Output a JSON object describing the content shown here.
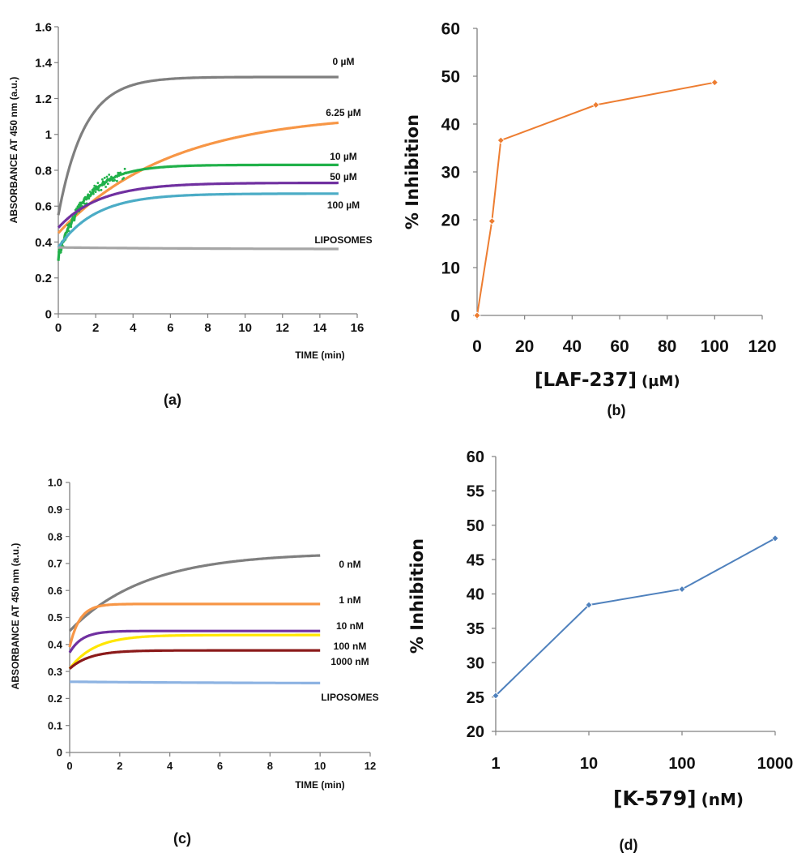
{
  "chart_data": [
    {
      "panel_label": "(a)",
      "type": "line",
      "title": "",
      "xlabel": "TIME (min)",
      "ylabel": "ABSORBANCE AT 450 nm (a.u.)",
      "xlim": [
        0,
        16
      ],
      "ylim": [
        0,
        1.6
      ],
      "xticks": [
        0,
        2,
        4,
        6,
        8,
        10,
        12,
        14,
        16
      ],
      "yticks": [
        0,
        0.2,
        0.4,
        0.6,
        0.8,
        1.0,
        1.2,
        1.4,
        1.6
      ],
      "ytick_labels": [
        "0",
        "0.2",
        "0.4",
        "0.6",
        "0.8",
        "1",
        "1.2",
        "1.4",
        "1.6"
      ],
      "series": [
        {
          "name": "0 µM",
          "color": "#7f7f7f",
          "model": {
            "y0": 0.55,
            "yinf": 1.32,
            "tau": 1.4,
            "xmax": 15
          }
        },
        {
          "name": "6.25 µM",
          "color": "#f79646",
          "model": {
            "y0": 0.45,
            "yinf": 1.12,
            "tau": 6.0,
            "xmax": 15
          }
        },
        {
          "name": "10 µM",
          "color": "#21b14a",
          "model": {
            "y0": 0.32,
            "yinf": 0.83,
            "tau": 1.5,
            "xmax": 15,
            "noisy": true
          }
        },
        {
          "name": "50 µM",
          "color": "#7030a0",
          "model": {
            "y0": 0.48,
            "yinf": 0.73,
            "tau": 2.2,
            "xmax": 15
          }
        },
        {
          "name": "100 µM",
          "color": "#4bacc6",
          "model": {
            "y0": 0.37,
            "yinf": 0.67,
            "tau": 2.0,
            "xmax": 15
          }
        },
        {
          "name": "LIPOSOMES",
          "color": "#a6a6a6",
          "model": {
            "y0": 0.37,
            "yinf": 0.36,
            "tau": 8.0,
            "xmax": 15
          }
        }
      ]
    },
    {
      "panel_label": "(b)",
      "type": "line",
      "title": "",
      "xlabel": "[LAF-237]",
      "xlabel_unit": "(µM)",
      "ylabel": "% Inhibition",
      "xlim": [
        0,
        120
      ],
      "ylim": [
        0,
        60
      ],
      "xticks": [
        0,
        20,
        40,
        60,
        80,
        100,
        120
      ],
      "yticks": [
        0,
        10,
        20,
        30,
        40,
        50,
        60
      ],
      "series": [
        {
          "name": "% Inhibition",
          "color": "#ed7d31",
          "x": [
            0,
            6.25,
            10,
            50,
            100
          ],
          "values": [
            0,
            19.7,
            36.6,
            44.0,
            48.7
          ]
        }
      ]
    },
    {
      "panel_label": "(c)",
      "type": "line",
      "title": "",
      "xlabel": "TIME (min)",
      "ylabel": "ABSORBANCE AT 450 nm (a.u.)",
      "xlim": [
        0,
        12
      ],
      "ylim": [
        0,
        1.0
      ],
      "xticks": [
        0,
        2,
        4,
        6,
        8,
        10,
        12
      ],
      "yticks": [
        0,
        0.1,
        0.2,
        0.3,
        0.4,
        0.5,
        0.6,
        0.7,
        0.8,
        0.9,
        1.0
      ],
      "ytick_labels": [
        "0",
        "0.1",
        "0.2",
        "0.3",
        "0.4",
        "0.5",
        "0.6",
        "0.7",
        "0.8",
        "0.9",
        "1.0"
      ],
      "series": [
        {
          "name": "0 nM",
          "color": "#7f7f7f",
          "model": {
            "y0": 0.45,
            "yinf": 0.74,
            "tau": 3.0,
            "xmax": 10
          }
        },
        {
          "name": "1 nM",
          "color": "#f79646",
          "model": {
            "y0": 0.39,
            "yinf": 0.55,
            "tau": 0.4,
            "xmax": 10
          }
        },
        {
          "name": "10 nM",
          "color": "#7030a0",
          "model": {
            "y0": 0.37,
            "yinf": 0.45,
            "tau": 0.5,
            "xmax": 10
          }
        },
        {
          "name": "100 nM",
          "color": "#ffe600",
          "model": {
            "y0": 0.31,
            "yinf": 0.435,
            "tau": 1.0,
            "xmax": 10
          }
        },
        {
          "name": "1000 nM",
          "color": "#8b1a1a",
          "model": {
            "y0": 0.31,
            "yinf": 0.378,
            "tau": 0.8,
            "xmax": 10
          }
        },
        {
          "name": "LIPOSOMES",
          "color": "#8db3e2",
          "model": {
            "y0": 0.262,
            "yinf": 0.255,
            "tau": 8.0,
            "xmax": 10
          }
        }
      ]
    },
    {
      "panel_label": "(d)",
      "type": "line",
      "title": "",
      "xscale": "log",
      "xlabel": "[K-579]",
      "xlabel_unit": "(nM)",
      "ylabel": "% Inhibition",
      "xlim": [
        1,
        1000
      ],
      "ylim": [
        20,
        60
      ],
      "xticks": [
        1,
        10,
        100,
        1000
      ],
      "yticks": [
        20,
        25,
        30,
        35,
        40,
        45,
        50,
        55,
        60
      ],
      "series": [
        {
          "name": "% Inhibition",
          "color": "#4f81bd",
          "x": [
            1,
            10,
            100,
            1000
          ],
          "values": [
            25.2,
            38.4,
            40.7,
            48.1
          ]
        }
      ]
    }
  ]
}
